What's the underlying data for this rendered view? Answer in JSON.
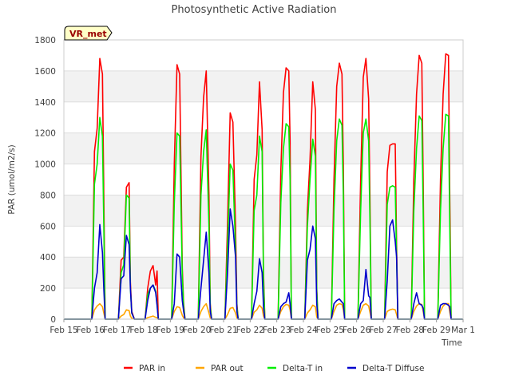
{
  "chart_data": {
    "type": "line",
    "title": "Photosynthetic Active Radiation",
    "xlabel": "Time",
    "ylabel": "PAR (umol/m2/s)",
    "ylim": [
      0,
      1800
    ],
    "yticks": [
      0,
      200,
      400,
      600,
      800,
      1000,
      1200,
      1400,
      1600,
      1800
    ],
    "xlim": [
      0,
      15
    ],
    "xtick_labels": [
      "Feb 15",
      "Feb 16",
      "Feb 17",
      "Feb 18",
      "Feb 19",
      "Feb 20",
      "Feb 21",
      "Feb 22",
      "Feb 23",
      "Feb 24",
      "Feb 25",
      "Feb 26",
      "Feb 27",
      "Feb 28",
      "Feb 29",
      "Mar 1"
    ],
    "annotation": "VR_met",
    "grid": "horizontal bands",
    "legend_position": "bottom",
    "day_offsets": [
      0,
      0.05,
      0.15,
      0.25,
      0.35,
      0.45,
      0.5,
      0.55,
      0.65,
      0.75,
      0.85,
      0.95,
      1.0
    ],
    "series": [
      {
        "name": "PAR in",
        "color": "#ff0000",
        "days": [
          {
            "day": 1,
            "values": [
              0,
              0,
              1080,
              1230,
              1680,
              1580,
              800,
              0,
              0,
              0,
              0,
              0,
              0
            ]
          },
          {
            "day": 2,
            "values": [
              0,
              0,
              380,
              400,
              850,
              880,
              240,
              50,
              0,
              0,
              0,
              0,
              0
            ]
          },
          {
            "day": 3,
            "values": [
              0,
              0,
              200,
              310,
              345,
              220,
              310,
              0,
              0,
              0,
              0,
              0,
              0
            ]
          },
          {
            "day": 4,
            "values": [
              0,
              0,
              1000,
              1640,
              1580,
              330,
              100,
              0,
              0,
              0,
              0,
              0,
              0
            ]
          },
          {
            "day": 5,
            "values": [
              0,
              0,
              1050,
              1430,
              1600,
              800,
              100,
              0,
              0,
              0,
              0,
              0,
              0
            ]
          },
          {
            "day": 6,
            "values": [
              0,
              0,
              620,
              1330,
              1270,
              600,
              100,
              0,
              0,
              0,
              0,
              0,
              0
            ]
          },
          {
            "day": 7,
            "values": [
              0,
              0,
              900,
              1060,
              1530,
              1220,
              300,
              0,
              0,
              0,
              0,
              0,
              0
            ]
          },
          {
            "day": 8,
            "values": [
              0,
              0,
              950,
              1460,
              1620,
              1600,
              1150,
              0,
              0,
              0,
              0,
              0,
              0
            ]
          },
          {
            "day": 9,
            "values": [
              0,
              0,
              700,
              1030,
              1530,
              1350,
              200,
              0,
              0,
              0,
              0,
              0,
              0
            ]
          },
          {
            "day": 10,
            "values": [
              0,
              0,
              900,
              1500,
              1650,
              1580,
              1000,
              0,
              0,
              0,
              0,
              0,
              0
            ]
          },
          {
            "day": 11,
            "values": [
              0,
              0,
              900,
              1560,
              1680,
              1420,
              800,
              0,
              0,
              0,
              0,
              0,
              0
            ]
          },
          {
            "day": 12,
            "values": [
              0,
              0,
              950,
              1120,
              1130,
              1130,
              480,
              0,
              0,
              0,
              0,
              0,
              0
            ]
          },
          {
            "day": 13,
            "values": [
              0,
              0,
              900,
              1450,
              1700,
              1650,
              900,
              0,
              0,
              0,
              0,
              0,
              0
            ]
          },
          {
            "day": 14,
            "values": [
              0,
              0,
              900,
              1450,
              1710,
              1700,
              800,
              0,
              0,
              0,
              0,
              0,
              0
            ]
          }
        ]
      },
      {
        "name": "PAR out",
        "color": "#ffa500",
        "days": [
          {
            "day": 1,
            "values": [
              0,
              0,
              60,
              85,
              100,
              80,
              40,
              0,
              0,
              0,
              0,
              0,
              0
            ]
          },
          {
            "day": 2,
            "values": [
              0,
              0,
              20,
              30,
              60,
              55,
              20,
              5,
              0,
              0,
              0,
              0,
              0
            ]
          },
          {
            "day": 3,
            "values": [
              0,
              0,
              10,
              15,
              20,
              12,
              10,
              0,
              0,
              0,
              0,
              0,
              0
            ]
          },
          {
            "day": 4,
            "values": [
              0,
              0,
              50,
              80,
              75,
              25,
              8,
              0,
              0,
              0,
              0,
              0,
              0
            ]
          },
          {
            "day": 5,
            "values": [
              0,
              0,
              50,
              80,
              100,
              40,
              8,
              0,
              0,
              0,
              0,
              0,
              0
            ]
          },
          {
            "day": 6,
            "values": [
              0,
              0,
              30,
              70,
              75,
              40,
              8,
              0,
              0,
              0,
              0,
              0,
              0
            ]
          },
          {
            "day": 7,
            "values": [
              0,
              0,
              45,
              60,
              90,
              70,
              20,
              0,
              0,
              0,
              0,
              0,
              0
            ]
          },
          {
            "day": 8,
            "values": [
              0,
              0,
              50,
              80,
              95,
              90,
              60,
              0,
              0,
              0,
              0,
              0,
              0
            ]
          },
          {
            "day": 9,
            "values": [
              0,
              0,
              40,
              60,
              90,
              80,
              15,
              0,
              0,
              0,
              0,
              0,
              0
            ]
          },
          {
            "day": 10,
            "values": [
              0,
              0,
              50,
              90,
              100,
              95,
              60,
              0,
              0,
              0,
              0,
              0,
              0
            ]
          },
          {
            "day": 11,
            "values": [
              0,
              0,
              50,
              90,
              100,
              85,
              45,
              0,
              0,
              0,
              0,
              0,
              0
            ]
          },
          {
            "day": 12,
            "values": [
              0,
              0,
              50,
              60,
              65,
              60,
              30,
              0,
              0,
              0,
              0,
              0,
              0
            ]
          },
          {
            "day": 13,
            "values": [
              0,
              0,
              50,
              85,
              100,
              95,
              50,
              0,
              0,
              0,
              0,
              0,
              0
            ]
          },
          {
            "day": 14,
            "values": [
              0,
              0,
              50,
              85,
              100,
              100,
              45,
              0,
              0,
              0,
              0,
              0,
              0
            ]
          }
        ]
      },
      {
        "name": "Delta-T in",
        "color": "#00ee00",
        "days": [
          {
            "day": 1,
            "values": [
              0,
              0,
              870,
              1000,
              1300,
              1180,
              600,
              0,
              0,
              0,
              0,
              0,
              0
            ]
          },
          {
            "day": 2,
            "values": [
              0,
              0,
              300,
              350,
              800,
              780,
              200,
              40,
              0,
              0,
              0,
              0,
              0
            ]
          },
          {
            "day": 3,
            "values": [
              0,
              0,
              160,
              200,
              220,
              180,
              100,
              0,
              0,
              0,
              0,
              0,
              0
            ]
          },
          {
            "day": 4,
            "values": [
              0,
              0,
              750,
              1200,
              1180,
              280,
              80,
              0,
              0,
              0,
              0,
              0,
              0
            ]
          },
          {
            "day": 5,
            "values": [
              0,
              0,
              800,
              1080,
              1220,
              600,
              80,
              0,
              0,
              0,
              0,
              0,
              0
            ]
          },
          {
            "day": 6,
            "values": [
              0,
              0,
              480,
              1000,
              960,
              450,
              80,
              0,
              0,
              0,
              0,
              0,
              0
            ]
          },
          {
            "day": 7,
            "values": [
              0,
              0,
              700,
              800,
              1180,
              1080,
              250,
              0,
              0,
              0,
              0,
              0,
              0
            ]
          },
          {
            "day": 8,
            "values": [
              0,
              0,
              750,
              1100,
              1260,
              1240,
              900,
              0,
              0,
              0,
              0,
              0,
              0
            ]
          },
          {
            "day": 9,
            "values": [
              0,
              0,
              600,
              900,
              1160,
              1050,
              180,
              0,
              0,
              0,
              0,
              0,
              0
            ]
          },
          {
            "day": 10,
            "values": [
              0,
              0,
              700,
              1150,
              1290,
              1250,
              800,
              0,
              0,
              0,
              0,
              0,
              0
            ]
          },
          {
            "day": 11,
            "values": [
              0,
              0,
              700,
              1200,
              1290,
              1150,
              650,
              0,
              0,
              0,
              0,
              0,
              0
            ]
          },
          {
            "day": 12,
            "values": [
              0,
              0,
              740,
              850,
              860,
              850,
              400,
              0,
              0,
              0,
              0,
              0,
              0
            ]
          },
          {
            "day": 13,
            "values": [
              0,
              0,
              700,
              1100,
              1310,
              1280,
              700,
              0,
              0,
              0,
              0,
              0,
              0
            ]
          },
          {
            "day": 14,
            "values": [
              0,
              0,
              700,
              1100,
              1320,
              1310,
              600,
              0,
              0,
              0,
              0,
              0,
              0
            ]
          }
        ]
      },
      {
        "name": "Delta-T Diffuse",
        "color": "#0000cc",
        "days": [
          {
            "day": 1,
            "values": [
              0,
              0,
              200,
              300,
              610,
              430,
              200,
              0,
              0,
              0,
              0,
              0,
              0
            ]
          },
          {
            "day": 2,
            "values": [
              0,
              0,
              260,
              280,
              540,
              480,
              200,
              40,
              0,
              0,
              0,
              0,
              0
            ]
          },
          {
            "day": 3,
            "values": [
              0,
              0,
              120,
              200,
              220,
              170,
              90,
              0,
              0,
              0,
              0,
              0,
              0
            ]
          },
          {
            "day": 4,
            "values": [
              0,
              0,
              100,
              420,
              400,
              120,
              50,
              0,
              0,
              0,
              0,
              0,
              0
            ]
          },
          {
            "day": 5,
            "values": [
              0,
              0,
              200,
              380,
              560,
              300,
              50,
              0,
              0,
              0,
              0,
              0,
              0
            ]
          },
          {
            "day": 6,
            "values": [
              0,
              0,
              300,
              710,
              600,
              400,
              50,
              0,
              0,
              0,
              0,
              0,
              0
            ]
          },
          {
            "day": 7,
            "values": [
              0,
              0,
              100,
              180,
              390,
              300,
              80,
              0,
              0,
              0,
              0,
              0,
              0
            ]
          },
          {
            "day": 8,
            "values": [
              0,
              0,
              80,
              100,
              110,
              170,
              100,
              0,
              0,
              0,
              0,
              0,
              0
            ]
          },
          {
            "day": 9,
            "values": [
              0,
              0,
              380,
              450,
              600,
              520,
              100,
              0,
              0,
              0,
              0,
              0,
              0
            ]
          },
          {
            "day": 10,
            "values": [
              0,
              0,
              100,
              120,
              130,
              110,
              100,
              0,
              0,
              0,
              0,
              0,
              0
            ]
          },
          {
            "day": 11,
            "values": [
              0,
              0,
              100,
              120,
              320,
              150,
              140,
              0,
              0,
              0,
              0,
              0,
              0
            ]
          },
          {
            "day": 12,
            "values": [
              0,
              0,
              250,
              600,
              640,
              500,
              400,
              0,
              0,
              0,
              0,
              0,
              0
            ]
          },
          {
            "day": 13,
            "values": [
              0,
              0,
              100,
              170,
              100,
              90,
              70,
              0,
              0,
              0,
              0,
              0,
              0
            ]
          },
          {
            "day": 14,
            "values": [
              0,
              0,
              90,
              100,
              100,
              90,
              80,
              0,
              0,
              0,
              0,
              0,
              0
            ]
          }
        ]
      }
    ]
  }
}
